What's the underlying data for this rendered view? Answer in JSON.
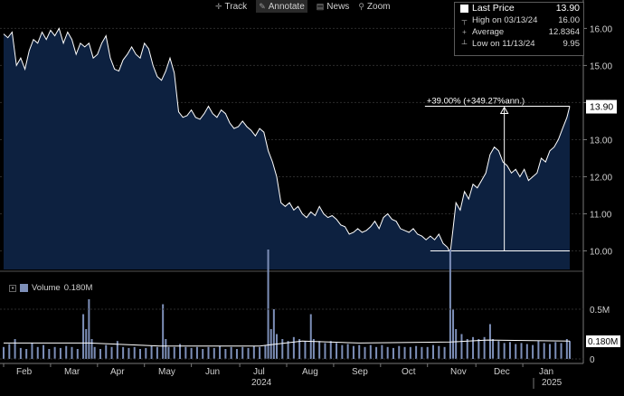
{
  "toolbar": {
    "items": [
      {
        "label": "Track",
        "icon": "crosshair-icon"
      },
      {
        "label": "Annotate",
        "icon": "pencil-icon",
        "active": true
      },
      {
        "label": "News",
        "icon": "news-icon"
      },
      {
        "label": "Zoom",
        "icon": "magnifier-icon"
      }
    ]
  },
  "legend": {
    "last_price_label": "Last Price",
    "last_price_value": "13.90",
    "high_label": "High on 03/13/24",
    "high_value": "16.00",
    "average_label": "Average",
    "average_value": "12.8364",
    "low_label": "Low on 11/13/24",
    "low_value": "9.95"
  },
  "volume_legend": {
    "label": "Volume",
    "value": "0.180M"
  },
  "colors": {
    "area_fill": "#0d2140",
    "line": "#ffffff",
    "volume_bar": "#7d8fb8",
    "volume_line": "#ffffff"
  },
  "chart_data": {
    "type": "area",
    "title": "",
    "price_axis": {
      "min": 9.5,
      "max": 16.4,
      "ticks": [
        "16.00",
        "15.00",
        "14.00",
        "13.00",
        "12.00",
        "11.00",
        "10.00"
      ]
    },
    "last_price_tag": "13.90",
    "annotation": {
      "label": "+39.00% (+349.27%ann.)",
      "from_value": 10.0,
      "to_value": 13.9
    },
    "months": [
      "Feb",
      "Mar",
      "Apr",
      "May",
      "Jun",
      "Jul",
      "Aug",
      "Sep",
      "Oct",
      "Nov",
      "Dec",
      "Jan"
    ],
    "years": [
      "2024",
      "2025"
    ],
    "price_series": [
      [
        0,
        15.85
      ],
      [
        3,
        15.75
      ],
      [
        6,
        15.9
      ],
      [
        9,
        15.0
      ],
      [
        12,
        15.2
      ],
      [
        15,
        14.9
      ],
      [
        18,
        15.4
      ],
      [
        21,
        15.7
      ],
      [
        24,
        15.6
      ],
      [
        27,
        15.9
      ],
      [
        30,
        15.7
      ],
      [
        33,
        15.95
      ],
      [
        36,
        15.8
      ],
      [
        39,
        16.0
      ],
      [
        42,
        15.6
      ],
      [
        45,
        15.9
      ],
      [
        48,
        15.7
      ],
      [
        51,
        15.3
      ],
      [
        54,
        15.6
      ],
      [
        57,
        15.5
      ],
      [
        60,
        15.6
      ],
      [
        63,
        15.2
      ],
      [
        66,
        15.3
      ],
      [
        69,
        15.6
      ],
      [
        72,
        15.8
      ],
      [
        75,
        15.2
      ],
      [
        78,
        14.9
      ],
      [
        81,
        14.85
      ],
      [
        84,
        15.15
      ],
      [
        87,
        15.3
      ],
      [
        90,
        15.5
      ],
      [
        93,
        15.3
      ],
      [
        96,
        15.2
      ],
      [
        99,
        15.6
      ],
      [
        102,
        15.45
      ],
      [
        105,
        15.0
      ],
      [
        108,
        14.7
      ],
      [
        111,
        14.6
      ],
      [
        114,
        14.85
      ],
      [
        117,
        15.2
      ],
      [
        120,
        14.8
      ],
      [
        123,
        13.75
      ],
      [
        126,
        13.6
      ],
      [
        129,
        13.65
      ],
      [
        132,
        13.8
      ],
      [
        135,
        13.6
      ],
      [
        138,
        13.55
      ],
      [
        141,
        13.7
      ],
      [
        144,
        13.9
      ],
      [
        147,
        13.7
      ],
      [
        150,
        13.6
      ],
      [
        153,
        13.8
      ],
      [
        156,
        13.7
      ],
      [
        159,
        13.45
      ],
      [
        162,
        13.3
      ],
      [
        165,
        13.35
      ],
      [
        168,
        13.5
      ],
      [
        171,
        13.35
      ],
      [
        174,
        13.25
      ],
      [
        177,
        13.1
      ],
      [
        180,
        13.3
      ],
      [
        183,
        13.2
      ],
      [
        186,
        12.7
      ],
      [
        189,
        12.4
      ],
      [
        192,
        12.0
      ],
      [
        195,
        11.3
      ],
      [
        198,
        11.2
      ],
      [
        201,
        11.3
      ],
      [
        204,
        11.1
      ],
      [
        207,
        11.2
      ],
      [
        210,
        11.0
      ],
      [
        213,
        10.9
      ],
      [
        216,
        11.05
      ],
      [
        219,
        10.95
      ],
      [
        222,
        11.2
      ],
      [
        225,
        11.0
      ],
      [
        228,
        10.9
      ],
      [
        231,
        10.95
      ],
      [
        234,
        10.85
      ],
      [
        237,
        10.7
      ],
      [
        240,
        10.65
      ],
      [
        243,
        10.45
      ],
      [
        246,
        10.5
      ],
      [
        249,
        10.6
      ],
      [
        252,
        10.5
      ],
      [
        255,
        10.55
      ],
      [
        258,
        10.65
      ],
      [
        261,
        10.8
      ],
      [
        264,
        10.6
      ],
      [
        267,
        10.9
      ],
      [
        270,
        11.0
      ],
      [
        273,
        10.85
      ],
      [
        276,
        10.8
      ],
      [
        279,
        10.6
      ],
      [
        282,
        10.55
      ],
      [
        285,
        10.5
      ],
      [
        288,
        10.6
      ],
      [
        291,
        10.45
      ],
      [
        294,
        10.4
      ],
      [
        297,
        10.3
      ],
      [
        300,
        10.4
      ],
      [
        303,
        10.3
      ],
      [
        306,
        10.45
      ],
      [
        309,
        10.2
      ],
      [
        312,
        10.1
      ],
      [
        314,
        9.95
      ],
      [
        316,
        10.6
      ],
      [
        318,
        11.3
      ],
      [
        321,
        11.1
      ],
      [
        324,
        11.6
      ],
      [
        327,
        11.4
      ],
      [
        330,
        11.8
      ],
      [
        333,
        11.7
      ],
      [
        336,
        11.9
      ],
      [
        339,
        12.1
      ],
      [
        342,
        12.6
      ],
      [
        345,
        12.8
      ],
      [
        348,
        12.7
      ],
      [
        351,
        12.4
      ],
      [
        354,
        12.3
      ],
      [
        357,
        12.1
      ],
      [
        360,
        12.2
      ],
      [
        363,
        12.0
      ],
      [
        366,
        12.2
      ],
      [
        369,
        11.9
      ],
      [
        372,
        12.0
      ],
      [
        375,
        12.1
      ],
      [
        378,
        12.5
      ],
      [
        381,
        12.4
      ],
      [
        384,
        12.7
      ],
      [
        387,
        12.8
      ],
      [
        390,
        13.0
      ],
      [
        393,
        13.3
      ],
      [
        396,
        13.6
      ],
      [
        398,
        13.9
      ]
    ],
    "volume_series": [
      [
        0,
        0.12
      ],
      [
        4,
        0.15
      ],
      [
        8,
        0.2
      ],
      [
        12,
        0.11
      ],
      [
        16,
        0.1
      ],
      [
        20,
        0.16
      ],
      [
        24,
        0.12
      ],
      [
        28,
        0.14
      ],
      [
        32,
        0.1
      ],
      [
        36,
        0.12
      ],
      [
        40,
        0.11
      ],
      [
        44,
        0.13
      ],
      [
        48,
        0.12
      ],
      [
        52,
        0.1
      ],
      [
        56,
        0.45
      ],
      [
        58,
        0.3
      ],
      [
        60,
        0.6
      ],
      [
        62,
        0.2
      ],
      [
        64,
        0.12
      ],
      [
        68,
        0.1
      ],
      [
        72,
        0.14
      ],
      [
        76,
        0.12
      ],
      [
        80,
        0.18
      ],
      [
        84,
        0.12
      ],
      [
        88,
        0.11
      ],
      [
        92,
        0.12
      ],
      [
        96,
        0.1
      ],
      [
        100,
        0.11
      ],
      [
        104,
        0.13
      ],
      [
        108,
        0.12
      ],
      [
        112,
        0.55
      ],
      [
        114,
        0.2
      ],
      [
        116,
        0.12
      ],
      [
        120,
        0.12
      ],
      [
        124,
        0.15
      ],
      [
        128,
        0.12
      ],
      [
        132,
        0.11
      ],
      [
        136,
        0.12
      ],
      [
        140,
        0.1
      ],
      [
        144,
        0.12
      ],
      [
        148,
        0.11
      ],
      [
        152,
        0.13
      ],
      [
        156,
        0.1
      ],
      [
        160,
        0.12
      ],
      [
        164,
        0.1
      ],
      [
        168,
        0.12
      ],
      [
        172,
        0.11
      ],
      [
        176,
        0.13
      ],
      [
        180,
        0.12
      ],
      [
        184,
        0.14
      ],
      [
        186,
        1.1
      ],
      [
        188,
        0.3
      ],
      [
        190,
        0.5
      ],
      [
        192,
        0.25
      ],
      [
        196,
        0.2
      ],
      [
        200,
        0.18
      ],
      [
        204,
        0.22
      ],
      [
        208,
        0.2
      ],
      [
        212,
        0.18
      ],
      [
        216,
        0.45
      ],
      [
        218,
        0.2
      ],
      [
        222,
        0.18
      ],
      [
        226,
        0.16
      ],
      [
        230,
        0.18
      ],
      [
        234,
        0.16
      ],
      [
        238,
        0.14
      ],
      [
        242,
        0.15
      ],
      [
        246,
        0.13
      ],
      [
        250,
        0.14
      ],
      [
        254,
        0.12
      ],
      [
        258,
        0.14
      ],
      [
        262,
        0.12
      ],
      [
        266,
        0.14
      ],
      [
        270,
        0.12
      ],
      [
        274,
        0.11
      ],
      [
        278,
        0.13
      ],
      [
        282,
        0.12
      ],
      [
        286,
        0.12
      ],
      [
        290,
        0.13
      ],
      [
        294,
        0.12
      ],
      [
        298,
        0.12
      ],
      [
        302,
        0.14
      ],
      [
        306,
        0.13
      ],
      [
        310,
        0.12
      ],
      [
        314,
        1.1
      ],
      [
        316,
        0.5
      ],
      [
        318,
        0.3
      ],
      [
        322,
        0.25
      ],
      [
        326,
        0.2
      ],
      [
        330,
        0.22
      ],
      [
        334,
        0.2
      ],
      [
        338,
        0.22
      ],
      [
        342,
        0.35
      ],
      [
        344,
        0.2
      ],
      [
        348,
        0.18
      ],
      [
        352,
        0.16
      ],
      [
        356,
        0.17
      ],
      [
        360,
        0.15
      ],
      [
        364,
        0.16
      ],
      [
        368,
        0.15
      ],
      [
        372,
        0.14
      ],
      [
        376,
        0.18
      ],
      [
        380,
        0.16
      ],
      [
        384,
        0.15
      ],
      [
        388,
        0.17
      ],
      [
        392,
        0.16
      ],
      [
        396,
        0.2
      ],
      [
        398,
        0.18
      ]
    ],
    "volume_avg": [
      [
        0,
        0.16
      ],
      [
        60,
        0.16
      ],
      [
        110,
        0.13
      ],
      [
        180,
        0.13
      ],
      [
        210,
        0.18
      ],
      [
        250,
        0.16
      ],
      [
        314,
        0.17
      ],
      [
        340,
        0.19
      ],
      [
        398,
        0.18
      ]
    ],
    "volume_axis": {
      "ticks": [
        "0.5M",
        "0"
      ]
    },
    "volume_last_tag": "0.180M"
  }
}
